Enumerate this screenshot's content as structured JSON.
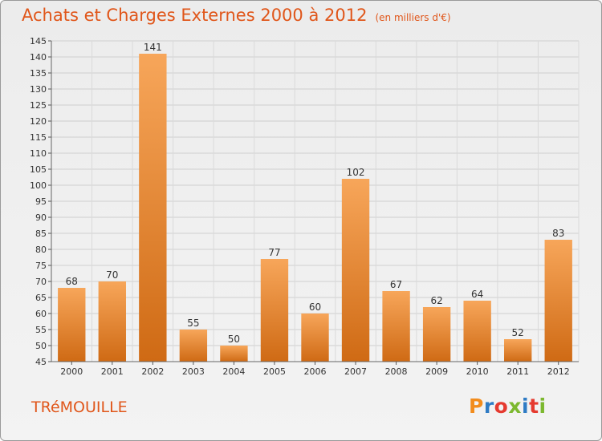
{
  "header": {
    "title": "Achats et Charges Externes 2000 à 2012",
    "subtitle": "(en milliers d'€)"
  },
  "footer": {
    "place": "TRéMOUILLE",
    "logo": "Proxiti"
  },
  "colors": {
    "title": "#e0561a",
    "bar_light": "#f7a65a",
    "bar_dark": "#cf6a14",
    "logo_letters": [
      "#f28c1c",
      "#2e7bc4",
      "#e53a2f",
      "#7cb82f",
      "#2e7bc4",
      "#e53a2f",
      "#7cb82f"
    ]
  },
  "chart_data": {
    "type": "bar",
    "title": "Achats et Charges Externes 2000 à 2012",
    "subtitle": "(en milliers d'€)",
    "xlabel": "",
    "ylabel": "",
    "categories": [
      "2000",
      "2001",
      "2002",
      "2003",
      "2004",
      "2005",
      "2006",
      "2007",
      "2008",
      "2009",
      "2010",
      "2011",
      "2012"
    ],
    "values": [
      68,
      70,
      141,
      55,
      50,
      77,
      60,
      102,
      67,
      62,
      64,
      52,
      83
    ],
    "ylim": [
      45,
      145
    ],
    "ytick_step": 5,
    "grid": true,
    "data_labels": true
  }
}
